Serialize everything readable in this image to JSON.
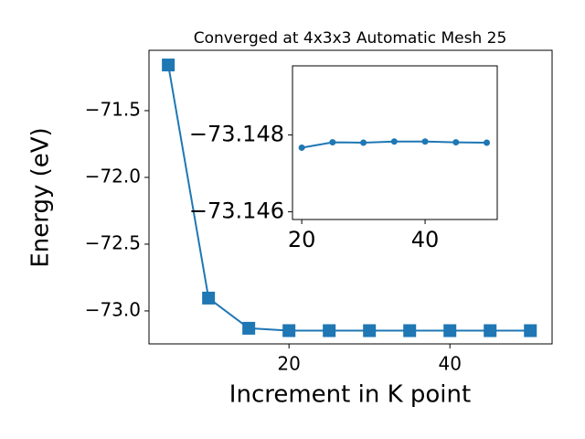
{
  "chart_data": [
    {
      "type": "line",
      "title": "Converged at 4x3x3 Automatic Mesh 25",
      "xlabel": "Increment in K point",
      "ylabel": "Energy (eV)",
      "x": [
        5,
        10,
        15,
        20,
        25,
        30,
        35,
        40,
        45,
        50
      ],
      "values": [
        -71.158,
        -72.904,
        -73.13,
        -73.1477,
        -73.1478,
        -73.1478,
        -73.1478,
        -73.1478,
        -73.1478,
        -73.1478
      ],
      "color": "#1f77b4",
      "marker": "square",
      "xlim": [
        2.6,
        52.7
      ],
      "ylim": [
        -73.247,
        -71.048
      ],
      "xticks": [
        20,
        40
      ],
      "yticks": [
        {
          "value": -71.5,
          "label": "−71.5"
        },
        {
          "value": -72.0,
          "label": "−72.0"
        },
        {
          "value": -72.5,
          "label": "−72.5"
        },
        {
          "value": -73.0,
          "label": "−73.0"
        }
      ]
    },
    {
      "type": "line",
      "x": [
        20,
        25,
        30,
        35,
        40,
        45,
        50
      ],
      "values": [
        -73.14767,
        -73.14781,
        -73.1478,
        -73.14783,
        -73.14783,
        -73.14781,
        -73.1478
      ],
      "color": "#1f77b4",
      "marker": "circle",
      "xlim": [
        18.5,
        51.7
      ],
      "ylim": [
        -73.1458,
        -73.1498
      ],
      "xticks": [
        20,
        40
      ],
      "yticks": [
        {
          "value": -73.148,
          "label": "−73.148"
        },
        {
          "value": -73.146,
          "label": "−73.146"
        }
      ]
    }
  ]
}
